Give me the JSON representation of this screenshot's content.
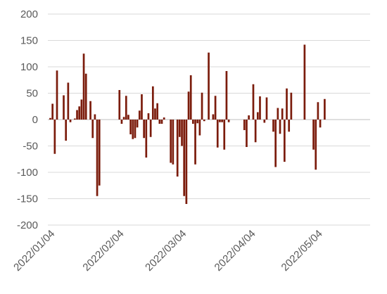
{
  "chart_data": {
    "type": "bar",
    "title": "",
    "xlabel": "",
    "ylabel": "",
    "ylim": [
      -200,
      200
    ],
    "yticks": [
      200,
      150,
      100,
      50,
      0,
      -50,
      -100,
      -150,
      -200
    ],
    "grid": true,
    "legend": "none",
    "bar_color": "#7b1c0c",
    "x_start": "2022/01/04",
    "x_tick_labels": [
      "2022/01/04",
      "2022/02/04",
      "2022/03/04",
      "2022/04/04",
      "2022/05/04"
    ],
    "x_tick_dates": [
      "2022/01/04",
      "2022/02/04",
      "2022/03/04",
      "2022/04/04",
      "2022/05/04"
    ],
    "x": [
      "2022/01/04",
      "2022/01/05",
      "2022/01/06",
      "2022/01/07",
      "2022/01/08",
      "2022/01/10",
      "2022/01/11",
      "2022/01/12",
      "2022/01/13",
      "2022/01/14",
      "2022/01/15",
      "2022/01/16",
      "2022/01/17",
      "2022/01/18",
      "2022/01/19",
      "2022/01/20",
      "2022/01/21",
      "2022/01/22",
      "2022/01/23",
      "2022/01/24",
      "2022/01/25",
      "2022/01/26",
      "2022/02/04",
      "2022/02/05",
      "2022/02/06",
      "2022/02/07",
      "2022/02/08",
      "2022/02/09",
      "2022/02/10",
      "2022/02/11",
      "2022/02/12",
      "2022/02/13",
      "2022/02/14",
      "2022/02/15",
      "2022/02/16",
      "2022/02/17",
      "2022/02/18",
      "2022/02/19",
      "2022/02/20",
      "2022/02/21",
      "2022/02/22",
      "2022/02/23",
      "2022/02/24",
      "2022/02/25",
      "2022/02/27",
      "2022/02/28",
      "2022/03/02",
      "2022/03/03",
      "2022/03/04",
      "2022/03/05",
      "2022/03/06",
      "2022/03/07",
      "2022/03/08",
      "2022/03/09",
      "2022/03/10",
      "2022/03/11",
      "2022/03/12",
      "2022/03/13",
      "2022/03/14",
      "2022/03/16",
      "2022/03/18",
      "2022/03/19",
      "2022/03/20",
      "2022/03/21",
      "2022/03/22",
      "2022/03/23",
      "2022/03/24",
      "2022/03/25",
      "2022/03/26",
      "2022/04/01",
      "2022/04/02",
      "2022/04/03",
      "2022/04/05",
      "2022/04/06",
      "2022/04/07",
      "2022/04/08",
      "2022/04/10",
      "2022/04/11",
      "2022/04/13",
      "2022/04/14",
      "2022/04/15",
      "2022/04/16",
      "2022/04/17",
      "2022/04/18",
      "2022/04/19",
      "2022/04/20",
      "2022/04/21",
      "2022/04/22",
      "2022/04/28",
      "2022/05/02",
      "2022/05/03",
      "2022/05/04",
      "2022/05/05",
      "2022/05/07",
      "2022/05/08",
      "2022/05/09",
      "2022/05/10",
      "2022/05/11",
      "2022/05/12",
      "2022/05/13",
      "2022/05/14",
      "2022/05/15",
      "2022/05/16"
    ],
    "values": [
      3,
      30,
      -65,
      93,
      0,
      46,
      -40,
      70,
      -5,
      0,
      2,
      18,
      25,
      38,
      125,
      87,
      0,
      35,
      -35,
      10,
      -145,
      -125,
      56,
      -8,
      5,
      45,
      9,
      -28,
      -37,
      -35,
      -15,
      17,
      48,
      -35,
      -72,
      12,
      -33,
      63,
      21,
      31,
      -8,
      -8,
      4,
      0,
      -82,
      -85,
      -108,
      -33,
      -50,
      -145,
      -160,
      53,
      84,
      -8,
      -85,
      -7,
      -30,
      51,
      -3,
      127,
      10,
      45,
      -53,
      -5,
      -5,
      -57,
      92,
      -5,
      0,
      -20,
      -52,
      8,
      67,
      -43,
      14,
      44,
      -6,
      42,
      0,
      -23,
      -90,
      22,
      -27,
      21,
      -80,
      59,
      -23,
      51,
      142,
      -57,
      -95,
      33,
      -15,
      39,
      0,
      0,
      0,
      0,
      0,
      0,
      0,
      0,
      0
    ]
  }
}
